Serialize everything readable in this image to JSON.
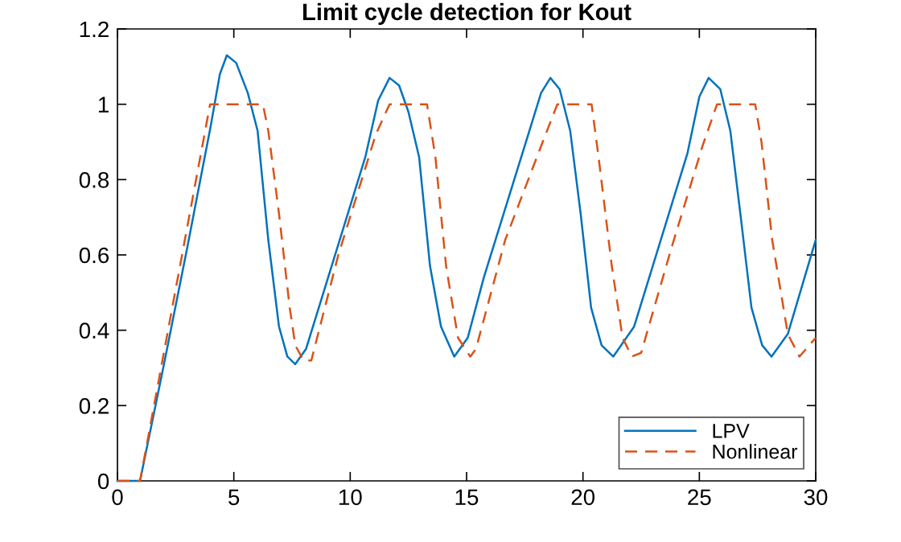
{
  "chart_data": {
    "type": "line",
    "title": "Limit cycle detection for Kout",
    "xlim": [
      0,
      30
    ],
    "xticks": [
      0,
      5,
      10,
      15,
      20,
      25,
      30
    ],
    "ylim": [
      0,
      1.2
    ],
    "yticks": [
      0,
      0.2,
      0.4,
      0.6,
      0.8,
      1,
      1.2
    ],
    "grid": false,
    "legend": "bottom right",
    "marker": "none",
    "series": [
      {
        "name": "LPV",
        "color": "#0072bd",
        "line_style": "solid",
        "x": [
          0,
          0.97,
          2,
          3,
          4,
          4.4,
          4.7,
          5.1,
          5.6,
          6.02,
          6.48,
          6.94,
          7.3,
          7.64,
          8.1,
          8.8,
          10.65,
          11.2,
          11.69,
          12.1,
          12.5,
          12.96,
          13.43,
          13.9,
          14.47,
          15.05,
          15.74,
          17.6,
          18.2,
          18.6,
          19.0,
          19.45,
          19.9,
          20.35,
          20.8,
          21.3,
          22.2,
          24.49,
          25.0,
          25.4,
          25.9,
          26.33,
          26.78,
          27.24,
          27.7,
          28.1,
          28.8,
          30
        ],
        "values": [
          0,
          0,
          0.31,
          0.62,
          0.94,
          1.08,
          1.13,
          1.11,
          1.03,
          0.93,
          0.64,
          0.41,
          0.33,
          0.31,
          0.35,
          0.49,
          0.86,
          1.01,
          1.07,
          1.05,
          0.98,
          0.86,
          0.57,
          0.41,
          0.33,
          0.38,
          0.54,
          0.91,
          1.03,
          1.07,
          1.04,
          0.93,
          0.71,
          0.46,
          0.36,
          0.33,
          0.41,
          0.87,
          1.02,
          1.07,
          1.04,
          0.93,
          0.7,
          0.46,
          0.36,
          0.33,
          0.39,
          0.64
        ]
      },
      {
        "name": "Nonlinear",
        "color": "#d95319",
        "line_style": "dashed",
        "x": [
          0,
          0.97,
          3.98,
          6.25,
          6.48,
          6.94,
          7.4,
          7.64,
          7.99,
          8.33,
          9.49,
          11.1,
          11.69,
          13.3,
          13.66,
          14.12,
          14.63,
          15.16,
          15.4,
          16.66,
          18.27,
          18.9,
          20.37,
          20.67,
          21.24,
          21.7,
          22.1,
          22.5,
          23.76,
          25.14,
          25.76,
          27.4,
          27.67,
          28.13,
          28.8,
          29.3,
          30
        ],
        "values": [
          0,
          0,
          1,
          1,
          0.93,
          0.71,
          0.46,
          0.36,
          0.32,
          0.32,
          0.6,
          0.92,
          1,
          1,
          0.86,
          0.57,
          0.38,
          0.33,
          0.35,
          0.64,
          0.9,
          1,
          1,
          0.86,
          0.57,
          0.38,
          0.33,
          0.34,
          0.61,
          0.89,
          1,
          1,
          0.9,
          0.64,
          0.39,
          0.33,
          0.38
        ]
      }
    ]
  }
}
